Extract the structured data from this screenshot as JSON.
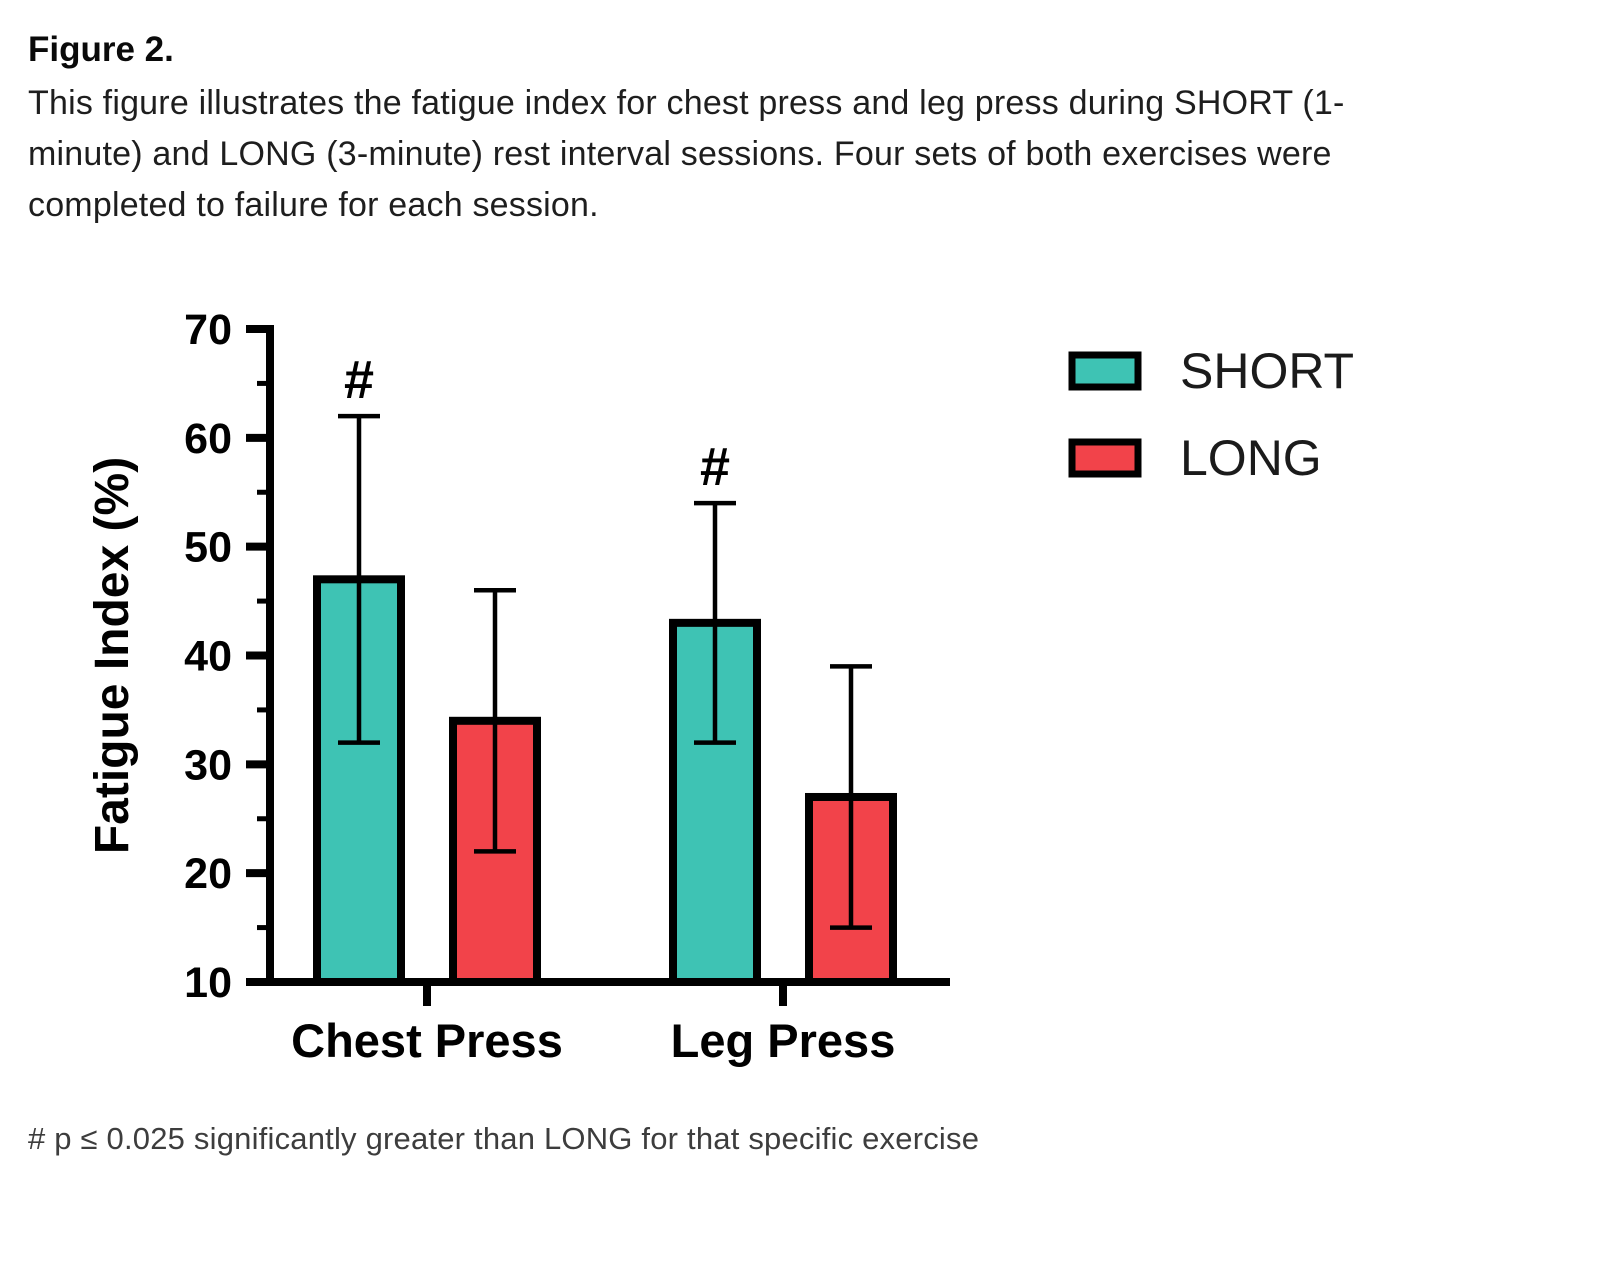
{
  "figure": {
    "label": "Figure 2.",
    "caption": "This figure illustrates the fatigue index for chest press and leg press during SHORT (1-minute) and LONG (3-minute) rest interval sessions. Four sets of both exercises were completed to failure for each session.",
    "footnote": "# p ≤ 0.025 significantly greater than LONG for that specific exercise"
  },
  "chart_data": {
    "type": "bar",
    "title": "",
    "xlabel": "",
    "ylabel": "Fatigue Index (%)",
    "categories": [
      "Chest Press",
      "Leg Press"
    ],
    "series": [
      {
        "name": "SHORT",
        "color": "#3EC3B4",
        "values": [
          47,
          43
        ],
        "error_upper": [
          62,
          54
        ],
        "error_lower": [
          32,
          32
        ],
        "significance": [
          "#",
          "#"
        ]
      },
      {
        "name": "LONG",
        "color": "#F2434A",
        "values": [
          34,
          27
        ],
        "error_upper": [
          46,
          39
        ],
        "error_lower": [
          22,
          15
        ],
        "significance": [
          "",
          ""
        ]
      }
    ],
    "ylim": [
      10,
      70
    ],
    "yticks": [
      10,
      20,
      30,
      40,
      50,
      60,
      70
    ],
    "minor_tick_step": 5,
    "grid": false,
    "legend_position": "top-right",
    "bar_outline_color": "#000000",
    "axis_color": "#000000"
  }
}
